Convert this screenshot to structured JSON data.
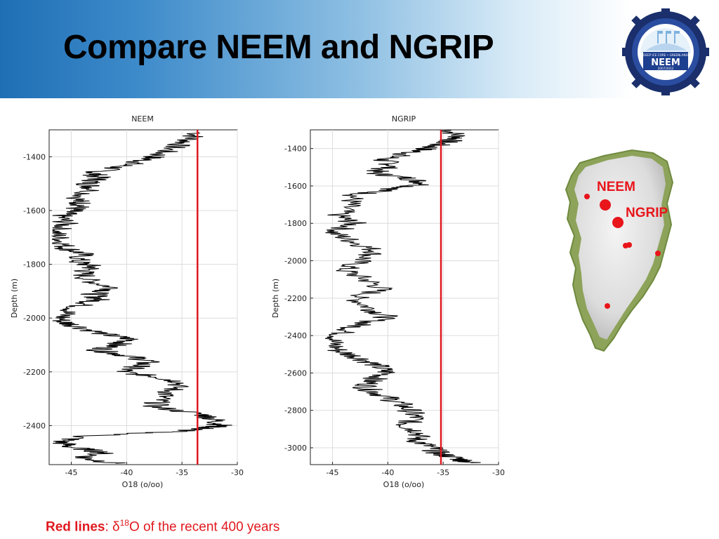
{
  "slide": {
    "title": "Compare NEEM and NGRIP",
    "caption_bold": "Red lines",
    "caption_sep": ": ",
    "caption_delta": "δ",
    "caption_sup": "18",
    "caption_rest": "O of the recent 400 years"
  },
  "logo": {
    "top_text": "DEEP ICE CORE • GREENLAND",
    "name": "NEEM",
    "years": "2007/2012",
    "colors": {
      "ring": "#1d3f8f",
      "gear": "#1a2f6b",
      "accent": "#5aa7dc"
    }
  },
  "map": {
    "labels": [
      "NEEM",
      "NGRIP"
    ],
    "label_color": "#e8151b",
    "dot_color": "#e8151b"
  },
  "chart_data": [
    {
      "type": "line",
      "title": "NEEM",
      "xlabel": "O18 (o/oo)",
      "ylabel": "Depth (m)",
      "xlim": [
        -47,
        -30
      ],
      "ylim": [
        -2545,
        -1300
      ],
      "xticks": [
        -45,
        -40,
        -35,
        -30
      ],
      "yticks": [
        -1400,
        -1600,
        -1800,
        -2000,
        -2200,
        -2400
      ],
      "grid": true,
      "series_color": "#000000",
      "reference_line": {
        "x": -33.6,
        "color": "#e0191f"
      },
      "series": [
        {
          "values": [
            [
              -33.5,
              -1310
            ],
            [
              -34.5,
              -1340
            ],
            [
              -36,
              -1370
            ],
            [
              -37.5,
              -1400
            ],
            [
              -39,
              -1420
            ],
            [
              -41,
              -1440
            ],
            [
              -43,
              -1460
            ],
            [
              -42.5,
              -1480
            ],
            [
              -43.5,
              -1500
            ],
            [
              -43,
              -1520
            ],
            [
              -44.5,
              -1560
            ],
            [
              -44,
              -1580
            ],
            [
              -45,
              -1600
            ],
            [
              -46,
              -1620
            ],
            [
              -45.5,
              -1650
            ],
            [
              -46.5,
              -1680
            ],
            [
              -46,
              -1710
            ],
            [
              -45.5,
              -1740
            ],
            [
              -44,
              -1760
            ],
            [
              -44.5,
              -1790
            ],
            [
              -43,
              -1810
            ],
            [
              -44,
              -1830
            ],
            [
              -43.5,
              -1860
            ],
            [
              -41,
              -1890
            ],
            [
              -43,
              -1910
            ],
            [
              -42.5,
              -1930
            ],
            [
              -44,
              -1950
            ],
            [
              -45.5,
              -1980
            ],
            [
              -46,
              -2010
            ],
            [
              -44.5,
              -2030
            ],
            [
              -42,
              -2060
            ],
            [
              -39.5,
              -2080
            ],
            [
              -41,
              -2100
            ],
            [
              -42.5,
              -2120
            ],
            [
              -40,
              -2140
            ],
            [
              -38,
              -2160
            ],
            [
              -39,
              -2180
            ],
            [
              -40.5,
              -2200
            ],
            [
              -37,
              -2220
            ],
            [
              -35,
              -2240
            ],
            [
              -36,
              -2270
            ],
            [
              -37,
              -2300
            ],
            [
              -37.5,
              -2330
            ],
            [
              -33,
              -2360
            ],
            [
              -32,
              -2380
            ],
            [
              -31.5,
              -2400
            ],
            [
              -33,
              -2410
            ],
            [
              -35,
              -2420
            ],
            [
              -44,
              -2440
            ],
            [
              -46,
              -2460
            ],
            [
              -45,
              -2480
            ],
            [
              -42,
              -2500
            ],
            [
              -44,
              -2520
            ],
            [
              -41,
              -2540
            ]
          ]
        }
      ]
    },
    {
      "type": "line",
      "title": "NGRIP",
      "xlabel": "O18 (o/oo)",
      "ylabel": "Depth (m)",
      "xlim": [
        -47,
        -30
      ],
      "ylim": [
        -3090,
        -1300
      ],
      "xticks": [
        -45,
        -40,
        -35,
        -30
      ],
      "yticks": [
        -1400,
        -1600,
        -1800,
        -2000,
        -2200,
        -2400,
        -2600,
        -2800,
        -3000
      ],
      "grid": true,
      "series_color": "#000000",
      "reference_line": {
        "x": -35.2,
        "color": "#e0191f"
      },
      "series": [
        {
          "values": [
            [
              -34.5,
              -1300
            ],
            [
              -33.5,
              -1340
            ],
            [
              -35,
              -1370
            ],
            [
              -36.5,
              -1400
            ],
            [
              -38.5,
              -1430
            ],
            [
              -40.5,
              -1460
            ],
            [
              -39.5,
              -1490
            ],
            [
              -41.5,
              -1530
            ],
            [
              -38,
              -1560
            ],
            [
              -36.5,
              -1590
            ],
            [
              -40,
              -1620
            ],
            [
              -43,
              -1650
            ],
            [
              -43.5,
              -1700
            ],
            [
              -44.5,
              -1760
            ],
            [
              -43,
              -1800
            ],
            [
              -45,
              -1850
            ],
            [
              -43,
              -1900
            ],
            [
              -41,
              -1950
            ],
            [
              -42.5,
              -2000
            ],
            [
              -44,
              -2050
            ],
            [
              -42,
              -2100
            ],
            [
              -40.5,
              -2150
            ],
            [
              -43,
              -2200
            ],
            [
              -41.5,
              -2260
            ],
            [
              -40,
              -2300
            ],
            [
              -42.5,
              -2340
            ],
            [
              -44,
              -2380
            ],
            [
              -45,
              -2430
            ],
            [
              -44.5,
              -2480
            ],
            [
              -42.5,
              -2520
            ],
            [
              -41,
              -2560
            ],
            [
              -40,
              -2600
            ],
            [
              -41.5,
              -2640
            ],
            [
              -42,
              -2680
            ],
            [
              -40.5,
              -2720
            ],
            [
              -39,
              -2760
            ],
            [
              -38,
              -2800
            ],
            [
              -37.5,
              -2840
            ],
            [
              -38.5,
              -2880
            ],
            [
              -37,
              -2920
            ],
            [
              -37.5,
              -2960
            ],
            [
              -36,
              -3000
            ],
            [
              -35.5,
              -3030
            ],
            [
              -33.5,
              -3060
            ],
            [
              -32.5,
              -3080
            ]
          ]
        }
      ]
    }
  ]
}
